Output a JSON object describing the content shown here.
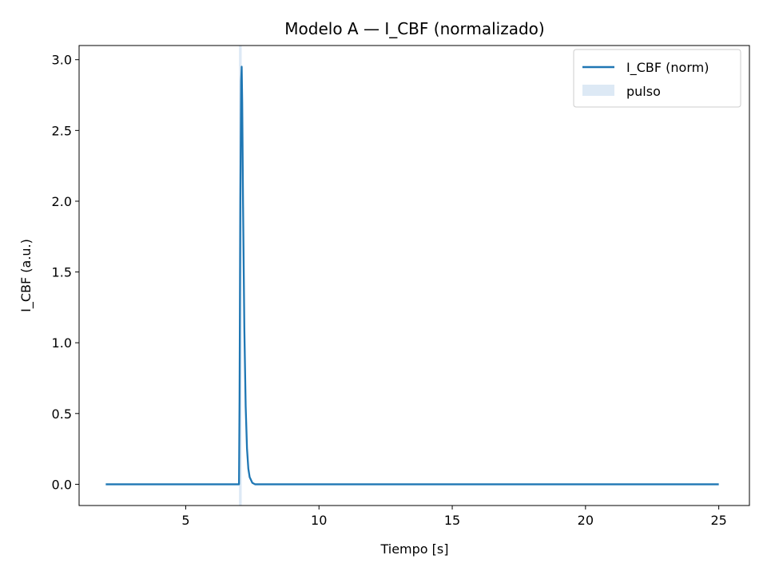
{
  "chart_data": {
    "type": "line",
    "title": "Modelo A — I_CBF (normalizado)",
    "xlabel": "Tiempo [s]",
    "ylabel": "I_CBF (a.u.)",
    "xlim": [
      1.0,
      26.15
    ],
    "ylim": [
      -0.15,
      3.1
    ],
    "x_ticks": [
      5,
      10,
      15,
      20,
      25
    ],
    "x_tick_labels": [
      "5",
      "10",
      "15",
      "20",
      "25"
    ],
    "y_ticks": [
      0.0,
      0.5,
      1.0,
      1.5,
      2.0,
      2.5,
      3.0
    ],
    "y_tick_labels": [
      "0.0",
      "0.5",
      "1.0",
      "1.5",
      "2.0",
      "2.5",
      "3.0"
    ],
    "grid": false,
    "legend_position": "top-right",
    "colors": {
      "line": "#1f77b4",
      "pulse": "#c6dbef"
    },
    "series": [
      {
        "name": "I_CBF (norm)",
        "x": [
          2.0,
          7.0,
          7.02,
          7.05,
          7.08,
          7.1,
          7.12,
          7.15,
          7.2,
          7.25,
          7.3,
          7.35,
          7.4,
          7.5,
          7.6,
          8.0,
          25.0
        ],
        "y": [
          0.0,
          0.0,
          0.6,
          2.0,
          2.85,
          2.95,
          2.7,
          2.0,
          1.1,
          0.55,
          0.25,
          0.11,
          0.05,
          0.01,
          0.0,
          0.0,
          0.0
        ]
      }
    ],
    "pulse": {
      "label": "pulso",
      "x_start": 7.0,
      "x_end": 7.1
    }
  }
}
